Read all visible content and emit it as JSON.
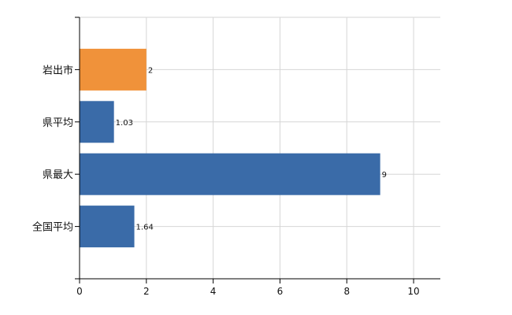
{
  "chart_data": {
    "type": "bar",
    "orientation": "horizontal",
    "categories": [
      "岩出市",
      "県平均",
      "県最大",
      "全国平均"
    ],
    "values": [
      2,
      1.03,
      9,
      1.64
    ],
    "data_labels": [
      "2",
      "1.03",
      "9",
      "1.64"
    ],
    "xlim": [
      0,
      10.8
    ],
    "xticks": [
      0,
      2,
      4,
      6,
      8,
      10
    ],
    "xtick_labels": [
      "0",
      "2",
      "4",
      "6",
      "8",
      "10"
    ],
    "grid": true,
    "legend": "none",
    "colors": {
      "highlight": "#F0923A",
      "default": "#3A6BA8"
    },
    "highlight_index": 0
  }
}
